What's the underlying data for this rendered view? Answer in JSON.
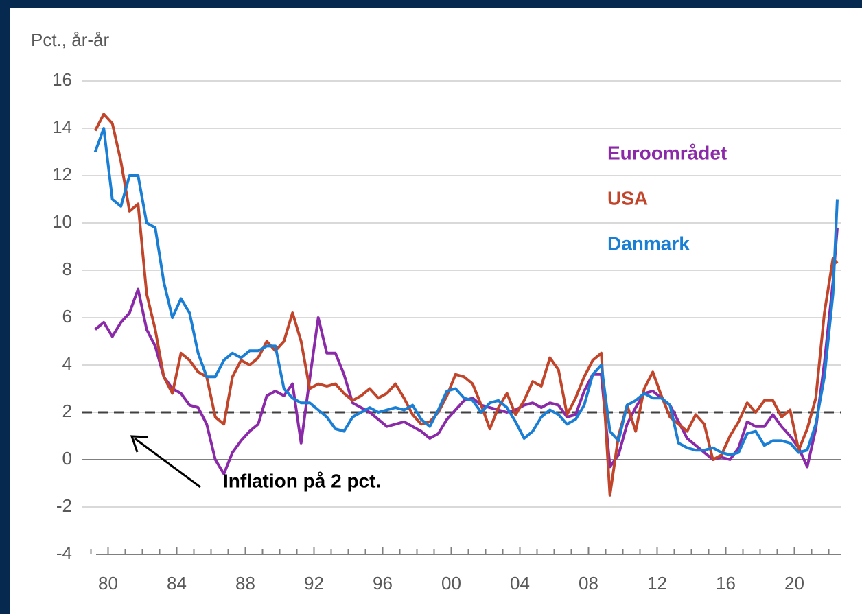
{
  "chart_data": {
    "type": "line",
    "ylabel": "Pct., år-år",
    "annotation": "Inflation på 2 pct.",
    "reference_line": 2,
    "grid": true,
    "x": [
      1979.25,
      1979.75,
      1980.25,
      1980.75,
      1981.25,
      1981.75,
      1982.25,
      1982.75,
      1983.25,
      1983.75,
      1984.25,
      1984.75,
      1985.25,
      1985.75,
      1986.25,
      1986.75,
      1987.25,
      1987.75,
      1988.25,
      1988.75,
      1989.25,
      1989.75,
      1990.25,
      1990.75,
      1991.25,
      1991.75,
      1992.25,
      1992.75,
      1993.25,
      1993.75,
      1994.25,
      1994.75,
      1995.25,
      1995.75,
      1996.25,
      1996.75,
      1997.25,
      1997.75,
      1998.25,
      1998.75,
      1999.25,
      1999.75,
      2000.25,
      2000.75,
      2001.25,
      2001.75,
      2002.25,
      2002.75,
      2003.25,
      2003.75,
      2004.25,
      2004.75,
      2005.25,
      2005.75,
      2006.25,
      2006.75,
      2007.25,
      2007.75,
      2008.25,
      2008.75,
      2009.25,
      2009.75,
      2010.25,
      2010.75,
      2011.25,
      2011.75,
      2012.25,
      2012.75,
      2013.25,
      2013.75,
      2014.25,
      2014.75,
      2015.25,
      2015.75,
      2016.25,
      2016.75,
      2017.25,
      2017.75,
      2018.25,
      2018.75,
      2019.25,
      2019.75,
      2020.25,
      2020.75,
      2021.25,
      2021.75,
      2022.25,
      2022.5
    ],
    "series": [
      {
        "name": "Euroområdet",
        "color": "#8b2aa8",
        "values": [
          5.5,
          5.8,
          5.2,
          5.8,
          6.2,
          7.2,
          5.5,
          4.8,
          3.5,
          3,
          2.8,
          2.3,
          2.2,
          1.5,
          0,
          -0.6,
          0.3,
          0.8,
          1.2,
          1.5,
          2.7,
          2.9,
          2.7,
          3.2,
          0.7,
          3.4,
          6,
          4.5,
          4.5,
          3.6,
          2.4,
          2.2,
          2,
          1.7,
          1.4,
          1.5,
          1.6,
          1.4,
          1.2,
          0.9,
          1.1,
          1.7,
          2.1,
          2.5,
          2.6,
          2.3,
          2.2,
          2.1,
          2,
          2.1,
          2.3,
          2.4,
          2.2,
          2.4,
          2.3,
          1.8,
          1.9,
          2.9,
          3.6,
          3.6,
          -0.3,
          0.2,
          1.5,
          2.2,
          2.8,
          2.9,
          2.6,
          2.3,
          1.6,
          0.9,
          0.6,
          0.3,
          0,
          0.1,
          0,
          0.5,
          1.6,
          1.4,
          1.4,
          1.9,
          1.4,
          1,
          0.5,
          -0.3,
          1.3,
          4.1,
          7.5,
          9.8
        ]
      },
      {
        "name": "USA",
        "color": "#c0452a",
        "values": [
          13.9,
          14.6,
          14.2,
          12.6,
          10.5,
          10.8,
          7,
          5.5,
          3.5,
          2.8,
          4.5,
          4.2,
          3.7,
          3.5,
          1.8,
          1.5,
          3.5,
          4.2,
          4,
          4.3,
          5,
          4.6,
          5,
          6.2,
          5,
          3,
          3.2,
          3.1,
          3.2,
          2.8,
          2.5,
          2.7,
          3,
          2.6,
          2.8,
          3.2,
          2.6,
          1.9,
          1.5,
          1.6,
          2,
          2.7,
          3.6,
          3.5,
          3.2,
          2.3,
          1.3,
          2.2,
          2.8,
          1.9,
          2.5,
          3.3,
          3.1,
          4.3,
          3.8,
          1.9,
          2.6,
          3.5,
          4.2,
          4.5,
          -1.5,
          1,
          2.3,
          1.2,
          3,
          3.7,
          2.7,
          1.8,
          1.5,
          1.2,
          1.9,
          1.5,
          0,
          0.2,
          1,
          1.6,
          2.4,
          2,
          2.5,
          2.5,
          1.8,
          2.1,
          0.4,
          1.3,
          2.6,
          6.2,
          8.5,
          8.3
        ]
      },
      {
        "name": "Danmark",
        "color": "#1a7fd4",
        "values": [
          13,
          14,
          11,
          10.7,
          12,
          12,
          10,
          9.8,
          7.5,
          6,
          6.8,
          6.2,
          4.5,
          3.5,
          3.5,
          4.2,
          4.5,
          4.3,
          4.6,
          4.6,
          4.8,
          4.8,
          3,
          2.6,
          2.4,
          2.4,
          2.1,
          1.8,
          1.3,
          1.2,
          1.8,
          2,
          2.2,
          2,
          2.1,
          2.2,
          2.1,
          2.3,
          1.7,
          1.4,
          2.1,
          2.9,
          3,
          2.6,
          2.5,
          2,
          2.4,
          2.5,
          2.2,
          1.6,
          0.9,
          1.2,
          1.8,
          2.1,
          1.9,
          1.5,
          1.7,
          2.3,
          3.6,
          4,
          1.2,
          0.8,
          2.3,
          2.5,
          2.8,
          2.6,
          2.6,
          2.3,
          0.7,
          0.5,
          0.4,
          0.4,
          0.5,
          0.3,
          0.2,
          0.3,
          1.1,
          1.2,
          0.6,
          0.8,
          0.8,
          0.7,
          0.3,
          0.4,
          1.5,
          3.5,
          7,
          11
        ]
      }
    ],
    "xlim": [
      1978.5,
      2022.7
    ],
    "xticks": [
      {
        "value": 1980,
        "label": "80"
      },
      {
        "value": 1984,
        "label": "84"
      },
      {
        "value": 1988,
        "label": "88"
      },
      {
        "value": 1992,
        "label": "92"
      },
      {
        "value": 1996,
        "label": "96"
      },
      {
        "value": 2000,
        "label": "00"
      },
      {
        "value": 2004,
        "label": "04"
      },
      {
        "value": 2008,
        "label": "08"
      },
      {
        "value": 2012,
        "label": "12"
      },
      {
        "value": 2016,
        "label": "16"
      },
      {
        "value": 2020,
        "label": "20"
      }
    ],
    "ylim": [
      -4,
      16
    ],
    "yticks": [
      -4,
      -2,
      0,
      2,
      4,
      6,
      8,
      10,
      12,
      14,
      16
    ]
  }
}
